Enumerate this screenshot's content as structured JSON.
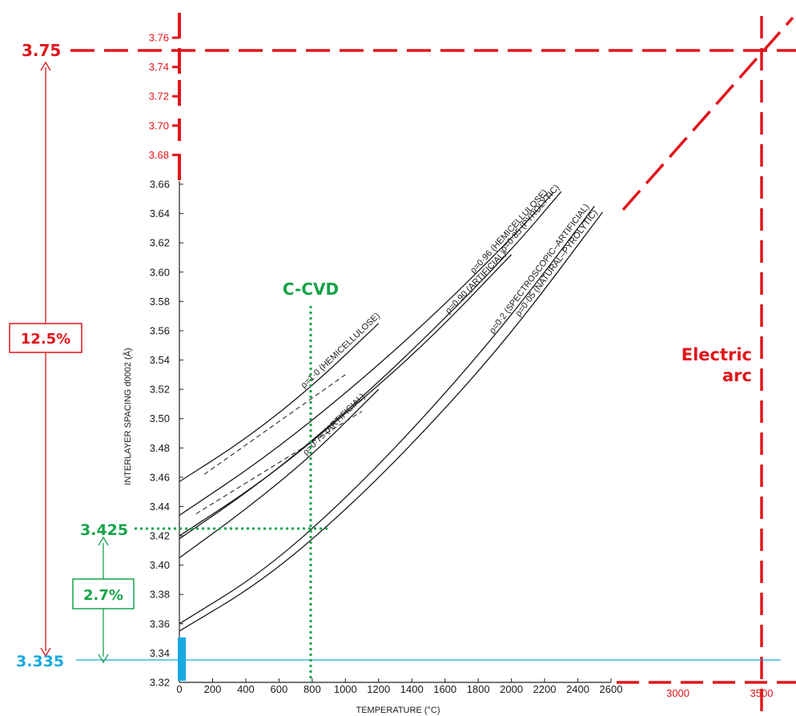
{
  "chart_data": {
    "type": "line",
    "xlabel": "TEMPERATURE (°C)",
    "ylabel": "INTERLAYER SPACING d0002 (Å)",
    "xlim": [
      0,
      2600
    ],
    "ylim": [
      3.32,
      3.66
    ],
    "x_ticks": [
      "0",
      "200",
      "400",
      "600",
      "800",
      "1000",
      "1200",
      "1400",
      "1600",
      "1800",
      "2000",
      "2200",
      "2400",
      "2600"
    ],
    "x_ticks_ext": [
      "3000",
      "3500"
    ],
    "y_ticks": [
      "3.32",
      "3.34",
      "3.36",
      "3.38",
      "3.40",
      "3.42",
      "3.44",
      "3.46",
      "3.48",
      "3.50",
      "3.52",
      "3.54",
      "3.56",
      "3.58",
      "3.60",
      "3.62",
      "3.64",
      "3.66"
    ],
    "y_ticks_ext": [
      "3.68",
      "3.70",
      "3.72",
      "3.74",
      "3.76"
    ],
    "series": [
      {
        "name": "ρ=1·0 (HEMICELLULOSE)",
        "x": [
          0,
          400,
          800,
          1200
        ],
        "y": [
          3.457,
          3.486,
          3.522,
          3.565
        ],
        "label_x": 1220
      },
      {
        "name": "ρ=0·96 (HEMICELLULOSE)",
        "x": [
          0,
          500,
          1000,
          1500,
          2000,
          2250
        ],
        "y": [
          3.434,
          3.472,
          3.517,
          3.567,
          3.623,
          3.654
        ],
        "label_x": 2230
      },
      {
        "name": "ρ=0·90 (ARTIFICIAL)",
        "x": [
          0,
          500,
          1000,
          1500,
          2000
        ],
        "y": [
          3.42,
          3.457,
          3.503,
          3.553,
          3.612
        ],
        "label_x": 1980
      },
      {
        "name": "ρ=0·85 (PYROLYTIC)",
        "x": [
          0,
          500,
          1000,
          1500,
          2000,
          2300
        ],
        "y": [
          3.418,
          3.457,
          3.504,
          3.557,
          3.615,
          3.655
        ],
        "label_x": 2300
      },
      {
        "name": "ρ=0·75 (ARTIFICIAL)",
        "x": [
          0,
          400,
          800,
          1200
        ],
        "y": [
          3.405,
          3.438,
          3.475,
          3.52
        ],
        "label_x": 1130
      },
      {
        "name": "ρ=0·2 (SPECTROSCOPIC–ARTIFICIAL)",
        "x": [
          0,
          500,
          1000,
          1500,
          2000,
          2500
        ],
        "y": [
          3.36,
          3.395,
          3.445,
          3.504,
          3.57,
          3.645
        ],
        "label_x": 2480
      },
      {
        "name": "ρ=0·05 (NATURAL–PYROLYTIC)",
        "x": [
          0,
          500,
          1000,
          1500,
          2000,
          2550
        ],
        "y": [
          3.355,
          3.389,
          3.437,
          3.494,
          3.558,
          3.641
        ],
        "label_x": 2530
      }
    ],
    "dashed_series": [
      {
        "x": [
          150,
          1000
        ],
        "y": [
          3.462,
          3.53
        ]
      },
      {
        "x": [
          100,
          1100
        ],
        "y": [
          3.435,
          3.505
        ]
      }
    ]
  },
  "annotations": {
    "top_value": "3.75",
    "bottom_value": "3.335",
    "cvd_value": "3.425",
    "pct_total": "12.5%",
    "pct_cvd": "2.7%",
    "cvd_label": "C-CVD",
    "arc_label_line1": "Electric",
    "arc_label_line2": "arc"
  },
  "colors": {
    "red": "#e0151b",
    "green": "#16a34a",
    "blue": "#16a9e0",
    "curve": "#1a1a1a"
  }
}
